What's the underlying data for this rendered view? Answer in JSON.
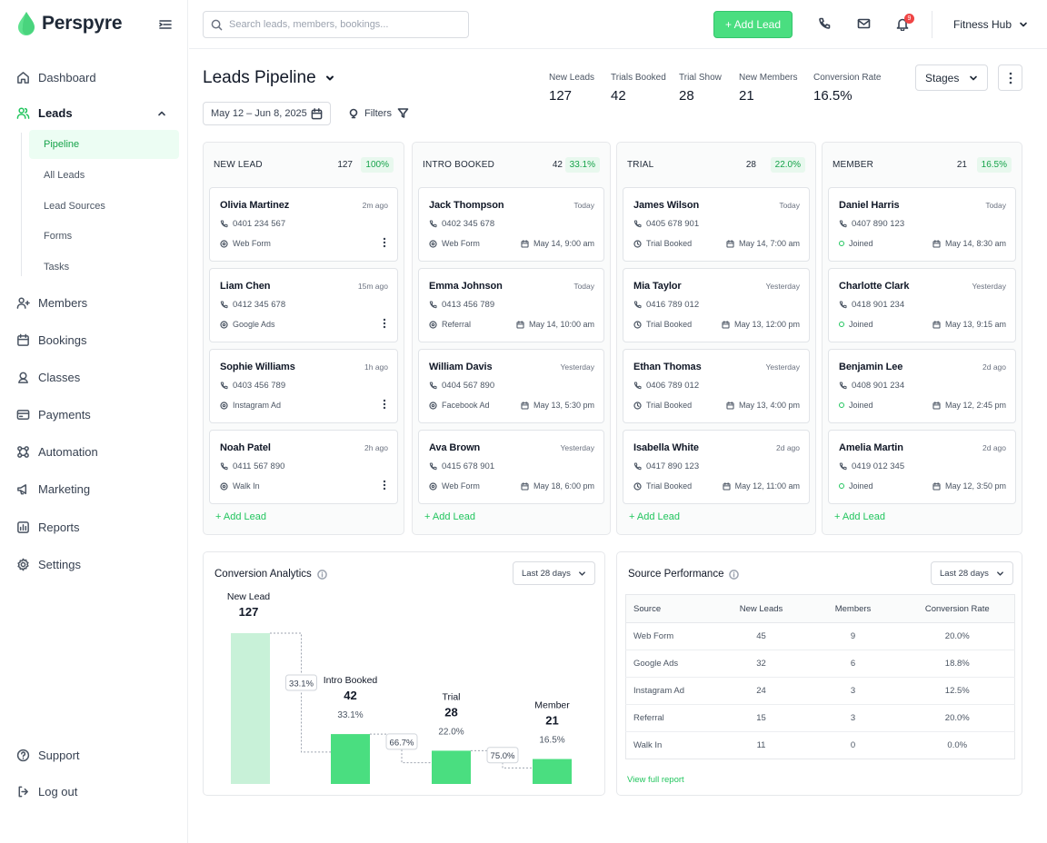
{
  "brand": {
    "name": "Perspyre",
    "accent": "#22c55e"
  },
  "sidebar": {
    "items": [
      {
        "label": "Dashboard"
      },
      {
        "label": "Leads"
      },
      {
        "label": "Members"
      },
      {
        "label": "Bookings"
      },
      {
        "label": "Classes"
      },
      {
        "label": "Payments"
      },
      {
        "label": "Automation"
      },
      {
        "label": "Marketing"
      },
      {
        "label": "Reports"
      },
      {
        "label": "Settings"
      }
    ],
    "leads_sub": [
      {
        "label": "Pipeline"
      },
      {
        "label": "All Leads"
      },
      {
        "label": "Lead Sources"
      },
      {
        "label": "Forms"
      },
      {
        "label": "Tasks"
      }
    ],
    "support": "Support",
    "logout": "Log out"
  },
  "topbar": {
    "search_placeholder": "Search leads, members, bookings...",
    "add_lead": "+ Add Lead",
    "notification_count": "9",
    "org": "Fitness Hub"
  },
  "header": {
    "title": "Leads Pipeline",
    "date_range": "May 12 – Jun 8, 2025",
    "filters": "Filters",
    "stages": "Stages",
    "kpis": [
      {
        "label": "New Leads",
        "value": "127"
      },
      {
        "label": "Trials Booked",
        "value": "42"
      },
      {
        "label": "Trial Show",
        "value": "28"
      },
      {
        "label": "New Members",
        "value": "21"
      },
      {
        "label": "Conversion Rate",
        "value": "16.5%"
      }
    ]
  },
  "columns": [
    {
      "title": "NEW LEAD",
      "count": "127",
      "pct": "100%",
      "cards": [
        {
          "name": "Olivia Martinez",
          "time": "2m ago",
          "phone": "0401 234 567",
          "source": "Web Form"
        },
        {
          "name": "Liam Chen",
          "time": "15m ago",
          "phone": "0412 345 678",
          "source": "Google Ads"
        },
        {
          "name": "Sophie Williams",
          "time": "1h ago",
          "phone": "0403 456 789",
          "source": "Instagram Ad"
        },
        {
          "name": "Noah Patel",
          "time": "2h ago",
          "phone": "0411 567 890",
          "source": "Walk In"
        }
      ],
      "add_label": "+ Add Lead"
    },
    {
      "title": "INTRO BOOKED",
      "count": "42",
      "pct": "33.1%",
      "cards": [
        {
          "name": "Jack Thompson",
          "time": "Today",
          "phone": "0402 345 678",
          "source": "Web Form",
          "date": "May 14, 9:00 am"
        },
        {
          "name": "Emma Johnson",
          "time": "Today",
          "phone": "0413 456 789",
          "source": "Referral",
          "date": "May 14, 10:00 am"
        },
        {
          "name": "William Davis",
          "time": "Yesterday",
          "phone": "0404 567 890",
          "source": "Facebook Ad",
          "date": "May 13, 5:30 pm"
        },
        {
          "name": "Ava Brown",
          "time": "Yesterday",
          "phone": "0415 678 901",
          "source": "Web Form",
          "date": "May 18, 6:00 pm"
        }
      ],
      "add_label": "+ Add Lead"
    },
    {
      "title": "TRIAL",
      "count": "28",
      "pct": "22.0%",
      "cards": [
        {
          "name": "James Wilson",
          "time": "Today",
          "phone": "0405 678 901",
          "source": "Trial Booked",
          "date": "May 14, 7:00 am"
        },
        {
          "name": "Mia Taylor",
          "time": "Yesterday",
          "phone": "0416 789 012",
          "source": "Trial Booked",
          "date": "May 13, 12:00 pm"
        },
        {
          "name": "Ethan Thomas",
          "time": "Yesterday",
          "phone": "0406 789 012",
          "source": "Trial Booked",
          "date": "May 13, 4:00 pm"
        },
        {
          "name": "Isabella White",
          "time": "2d ago",
          "phone": "0417 890 123",
          "source": "Trial Booked",
          "date": "May 12, 11:00 am"
        }
      ],
      "add_label": "+ Add Lead"
    },
    {
      "title": "MEMBER",
      "count": "21",
      "pct": "16.5%",
      "cards": [
        {
          "name": "Daniel Harris",
          "time": "Today",
          "phone": "0407 890 123",
          "source": "Joined",
          "date": "May 14, 8:30 am"
        },
        {
          "name": "Charlotte Clark",
          "time": "Yesterday",
          "phone": "0418 901 234",
          "source": "Joined",
          "date": "May 13, 9:15 am"
        },
        {
          "name": "Benjamin Lee",
          "time": "2d ago",
          "phone": "0408 901 234",
          "source": "Joined",
          "date": "May 12, 2:45 pm"
        },
        {
          "name": "Amelia Martin",
          "time": "2d ago",
          "phone": "0419 012 345",
          "source": "Joined",
          "date": "May 12, 3:50 pm"
        }
      ],
      "add_label": "+ Add Lead"
    }
  ],
  "analytics": {
    "title": "Conversion Analytics",
    "range": "Last 28 days",
    "chart_data": {
      "type": "bar",
      "categories": [
        "New Lead",
        "Intro Booked",
        "Trial",
        "Member"
      ],
      "values": [
        127,
        42,
        28,
        21
      ],
      "value_pct": [
        "",
        "33.1%",
        "22.0%",
        "16.5%"
      ],
      "step_rates": [
        "33.1%",
        "66.7%",
        "75.0%"
      ],
      "ylim": [
        0,
        127
      ],
      "colors": [
        "#c8f1d8",
        "#4ade80",
        "#4ade80",
        "#4ade80"
      ]
    }
  },
  "source_performance": {
    "title": "Source Performance",
    "range": "Last 28 days",
    "headers": [
      "Source",
      "New Leads",
      "Members",
      "Conversion Rate"
    ],
    "rows": [
      [
        "Web Form",
        "45",
        "9",
        "20.0%"
      ],
      [
        "Google Ads",
        "32",
        "6",
        "18.8%"
      ],
      [
        "Instagram Ad",
        "24",
        "3",
        "12.5%"
      ],
      [
        "Referral",
        "15",
        "3",
        "20.0%"
      ],
      [
        "Walk In",
        "11",
        "0",
        "0.0%"
      ]
    ],
    "view_report": "View full report"
  }
}
